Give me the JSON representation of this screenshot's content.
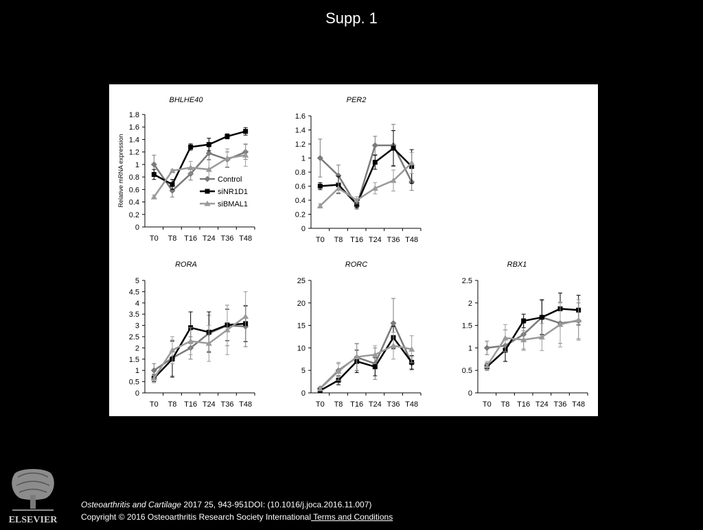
{
  "slide": {
    "title": "Supp. 1",
    "citation_journal": "Osteoarthritis and Cartilage",
    "citation_rest": " 2017 25, 943-951DOI: (10.1016/j.joca.2016.11.007)",
    "copyright": "Copyright © 2016 Osteoarthritis Research Society International",
    "terms_link": " Terms and Conditions",
    "logo_text": "ELSEVIER"
  },
  "colors": {
    "Control": "#7a7a7a",
    "siNR1D1": "#000000",
    "siBMAL1": "#9a9a9a"
  },
  "chart_data": [
    {
      "type": "line",
      "title": "BHLHE40",
      "ylabel": "Relative mRNA expression",
      "categories": [
        "T0",
        "T8",
        "T16",
        "T24",
        "T36",
        "T48"
      ],
      "ylim": [
        0,
        1.8
      ],
      "yticks": [
        "0",
        "0.2",
        "0.4",
        "0.6",
        "0.8",
        "1",
        "1.2",
        "1.4",
        "1.6",
        "1.8"
      ],
      "legend": "inside-bottom-right",
      "series": [
        {
          "name": "Control",
          "marker": "diamond",
          "values": [
            1.0,
            0.58,
            0.85,
            1.18,
            1.08,
            1.2
          ],
          "errors": [
            0.15,
            0.1,
            0.1,
            0.1,
            0.12,
            0.12
          ]
        },
        {
          "name": "siNR1D1",
          "marker": "square",
          "values": [
            0.84,
            0.68,
            1.28,
            1.32,
            1.45,
            1.53
          ],
          "errors": [
            0.08,
            0.08,
            0.05,
            0.1,
            0.04,
            0.06
          ]
        },
        {
          "name": "siBMAL1",
          "marker": "triangle",
          "values": [
            0.48,
            0.9,
            0.95,
            0.92,
            1.1,
            1.15
          ],
          "errors": [
            0.03,
            0.02,
            0.1,
            0.15,
            0.15,
            0.18
          ]
        }
      ]
    },
    {
      "type": "line",
      "title": "PER2",
      "ylabel": "",
      "categories": [
        "T0",
        "T8",
        "T16",
        "T24",
        "T36",
        "T48"
      ],
      "ylim": [
        0,
        1.6
      ],
      "yticks": [
        "0",
        "0.2",
        "0.4",
        "0.6",
        "0.8",
        "1",
        "1.2",
        "1.4",
        "1.6"
      ],
      "series": [
        {
          "name": "Control",
          "marker": "diamond",
          "values": [
            1.0,
            0.75,
            0.32,
            1.18,
            1.18,
            0.66
          ],
          "errors": [
            0.27,
            0.15,
            0.05,
            0.13,
            0.3,
            0.12
          ]
        },
        {
          "name": "siNR1D1",
          "marker": "square",
          "values": [
            0.6,
            0.62,
            0.34,
            0.94,
            1.14,
            0.88
          ],
          "errors": [
            0.05,
            0.12,
            0.05,
            0.1,
            0.25,
            0.24
          ]
        },
        {
          "name": "siBMAL1",
          "marker": "triangle",
          "values": [
            0.32,
            0.57,
            0.4,
            0.57,
            0.68,
            0.93
          ],
          "errors": [
            0.03,
            0.08,
            0.05,
            0.08,
            0.15,
            0.15
          ]
        }
      ]
    },
    {
      "type": "line",
      "title": "RORA",
      "ylabel": "",
      "categories": [
        "T0",
        "T8",
        "T16",
        "T24",
        "T36",
        "T48"
      ],
      "ylim": [
        0,
        5
      ],
      "yticks": [
        "0",
        "0.5",
        "1",
        "1.5",
        "2",
        "2.5",
        "3",
        "3.5",
        "4",
        "4.5",
        "5"
      ],
      "series": [
        {
          "name": "Control",
          "marker": "diamond",
          "values": [
            1.0,
            1.55,
            2.0,
            2.65,
            3.0,
            2.95
          ],
          "errors": [
            0.3,
            0.8,
            0.5,
            0.8,
            0.9,
            0.9
          ]
        },
        {
          "name": "siNR1D1",
          "marker": "square",
          "values": [
            0.65,
            1.5,
            2.9,
            2.7,
            3.02,
            3.08
          ],
          "errors": [
            0.15,
            0.8,
            0.7,
            0.9,
            0.7,
            0.8
          ]
        },
        {
          "name": "siBMAL1",
          "marker": "triangle",
          "values": [
            0.65,
            1.9,
            2.3,
            2.2,
            2.8,
            3.4
          ],
          "errors": [
            0.2,
            0.6,
            0.6,
            0.8,
            1.1,
            1.1
          ]
        }
      ]
    },
    {
      "type": "line",
      "title": "RORC",
      "ylabel": "",
      "categories": [
        "T0",
        "T8",
        "T16",
        "T24",
        "T36",
        "T48"
      ],
      "ylim": [
        0,
        25
      ],
      "yticks": [
        "0",
        "5",
        "10",
        "15",
        "20",
        "25"
      ],
      "series": [
        {
          "name": "Control",
          "marker": "diamond",
          "values": [
            1.0,
            5.0,
            7.9,
            6.5,
            15.5,
            6.6
          ],
          "errors": [
            0.3,
            1.5,
            3.0,
            3.5,
            5.5,
            1.5
          ]
        },
        {
          "name": "siNR1D1",
          "marker": "square",
          "values": [
            0.5,
            2.8,
            7.0,
            5.8,
            12.3,
            6.8
          ],
          "errors": [
            0.2,
            1.0,
            2.5,
            2.0,
            2.5,
            1.5
          ]
        },
        {
          "name": "siBMAL1",
          "marker": "triangle",
          "values": [
            0.9,
            4.8,
            8.0,
            8.5,
            10.5,
            9.7
          ],
          "errors": [
            0.3,
            2.0,
            3.0,
            2.0,
            3.0,
            3.0
          ]
        }
      ]
    },
    {
      "type": "line",
      "title": "RBX1",
      "ylabel": "",
      "categories": [
        "T0",
        "T8",
        "T16",
        "T24",
        "T36",
        "T48"
      ],
      "ylim": [
        0,
        2.5
      ],
      "yticks": [
        "0",
        "0.5",
        "1",
        "1.5",
        "2",
        "2.5"
      ],
      "series": [
        {
          "name": "Control",
          "marker": "diamond",
          "values": [
            1.0,
            1.05,
            1.3,
            1.68,
            1.55,
            1.6
          ],
          "errors": [
            0.15,
            0.35,
            0.35,
            0.4,
            0.45,
            0.4
          ]
        },
        {
          "name": "siNR1D1",
          "marker": "square",
          "values": [
            0.58,
            0.95,
            1.6,
            1.68,
            1.87,
            1.84
          ],
          "errors": [
            0.08,
            0.25,
            0.15,
            0.38,
            0.35,
            0.33
          ]
        },
        {
          "name": "siBMAL1",
          "marker": "triangle",
          "values": [
            0.6,
            1.22,
            1.18,
            1.24,
            1.52,
            1.62
          ],
          "errors": [
            0.1,
            0.3,
            0.2,
            0.3,
            0.5,
            0.45
          ]
        }
      ]
    }
  ]
}
